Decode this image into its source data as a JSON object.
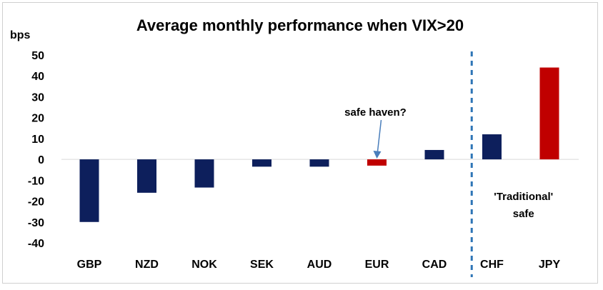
{
  "chart_data": {
    "type": "bar",
    "title": "Average monthly performance when VIX>20",
    "unit_label": "bps",
    "categories": [
      "GBP",
      "NZD",
      "NOK",
      "SEK",
      "AUD",
      "EUR",
      "CAD",
      "CHF",
      "JPY"
    ],
    "values": [
      -30,
      -16,
      -13.5,
      -3.5,
      -3.5,
      -3,
      4.5,
      12,
      44
    ],
    "bar_colors": [
      "#0d1f5c",
      "#0d1f5c",
      "#0d1f5c",
      "#0d1f5c",
      "#0d1f5c",
      "#c00000",
      "#0d1f5c",
      "#0d1f5c",
      "#c00000"
    ],
    "ylim": [
      -40,
      50
    ],
    "yticks": [
      50,
      40,
      30,
      20,
      10,
      0,
      -10,
      -20,
      -30,
      -40
    ],
    "grid": false,
    "legend": "none",
    "annotations": {
      "safe_haven": "safe haven?",
      "traditional_line1": "'Traditional'",
      "traditional_line2": "safe"
    },
    "divider_after_category": "CAD",
    "divider_color": "#2e75b6",
    "arrow_color": "#4a7ebb"
  }
}
